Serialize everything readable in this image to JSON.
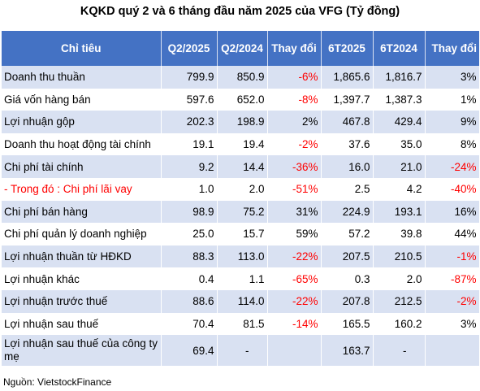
{
  "title": "KQKD quý 2 và 6 tháng đầu năm 2025 của VFG (Tỷ đồng)",
  "headers": [
    "Chỉ tiêu",
    "Q2/2025",
    "Q2/2024",
    "Thay đổi",
    "6T2025",
    "6T2024",
    "Thay đổi"
  ],
  "rows": [
    {
      "name": "Doanh thu thuần",
      "q2_2025": "799.9",
      "q2_2024": "850.9",
      "chg_q": "-6%",
      "h1_2025": "1,865.6",
      "h1_2024": "1,816.7",
      "chg_h": "3%"
    },
    {
      "name": "Giá vốn hàng bán",
      "q2_2025": "597.6",
      "q2_2024": "652.0",
      "chg_q": "-8%",
      "h1_2025": "1,397.7",
      "h1_2024": "1,387.3",
      "chg_h": "1%"
    },
    {
      "name": "Lợi nhuận gộp",
      "q2_2025": "202.3",
      "q2_2024": "198.9",
      "chg_q": "2%",
      "h1_2025": "467.8",
      "h1_2024": "429.4",
      "chg_h": "9%"
    },
    {
      "name": "Doanh thu hoạt động tài chính",
      "q2_2025": "19.1",
      "q2_2024": "19.4",
      "chg_q": "-2%",
      "h1_2025": "37.6",
      "h1_2024": "35.0",
      "chg_h": "8%"
    },
    {
      "name": "Chi phí tài chính",
      "q2_2025": "9.2",
      "q2_2024": "14.4",
      "chg_q": "-36%",
      "h1_2025": "16.0",
      "h1_2024": "21.0",
      "chg_h": "-24%"
    },
    {
      "name": "- Trong đó : Chi phí lãi vay",
      "q2_2025": "1.0",
      "q2_2024": "2.0",
      "chg_q": "-51%",
      "h1_2025": "2.5",
      "h1_2024": "4.2",
      "chg_h": "-40%"
    },
    {
      "name": "Chi phí bán hàng",
      "q2_2025": "98.9",
      "q2_2024": "75.2",
      "chg_q": "31%",
      "h1_2025": "224.9",
      "h1_2024": "193.1",
      "chg_h": "16%"
    },
    {
      "name": "Chi phí quản lý doanh nghiệp",
      "q2_2025": "25.0",
      "q2_2024": "15.7",
      "chg_q": "59%",
      "h1_2025": "57.2",
      "h1_2024": "39.8",
      "chg_h": "44%"
    },
    {
      "name": "Lợi nhuận thuần từ HĐKD",
      "q2_2025": "88.3",
      "q2_2024": "113.0",
      "chg_q": "-22%",
      "h1_2025": "207.5",
      "h1_2024": "210.5",
      "chg_h": "-1%"
    },
    {
      "name": "Lợi nhuận khác",
      "q2_2025": "0.4",
      "q2_2024": "1.1",
      "chg_q": "-65%",
      "h1_2025": "0.3",
      "h1_2024": "2.0",
      "chg_h": "-87%"
    },
    {
      "name": "Lợi nhuận trước thuế",
      "q2_2025": "88.6",
      "q2_2024": "114.0",
      "chg_q": "-22%",
      "h1_2025": "207.8",
      "h1_2024": "212.5",
      "chg_h": "-2%"
    },
    {
      "name": "Lợi nhuận sau thuế",
      "q2_2025": "70.4",
      "q2_2024": "81.5",
      "chg_q": "-14%",
      "h1_2025": "165.5",
      "h1_2024": "160.2",
      "chg_h": "3%"
    },
    {
      "name": "Lợi nhuận sau thuế của công ty mẹ",
      "q2_2025": "69.4",
      "q2_2024": "-",
      "chg_q": "",
      "h1_2025": "163.7",
      "h1_2024": "-",
      "chg_h": ""
    }
  ],
  "colors": {
    "header_bg": "#4472c4",
    "band_bg": "#d9e1f2",
    "negative": "#ff0000"
  },
  "source": "Nguồn: VietstockFinance"
}
